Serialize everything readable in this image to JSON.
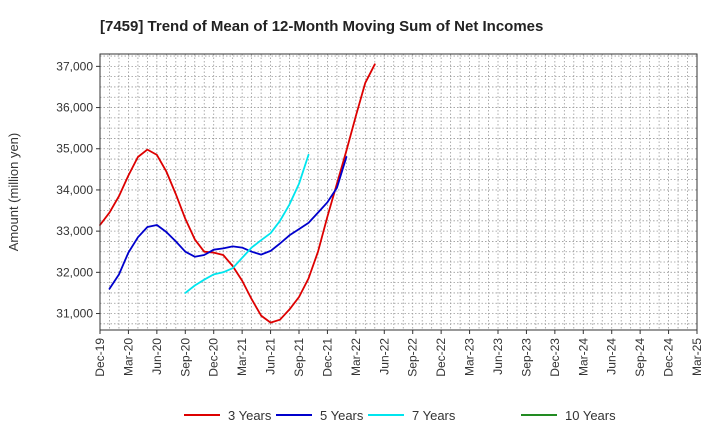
{
  "chart_data": {
    "type": "line",
    "title": "[7459]  Trend of Mean of 12-Month Moving Sum of Net Incomes",
    "xlabel": "",
    "ylabel": "Amount (million yen)",
    "ylim": [
      30600,
      37300
    ],
    "yticks": [
      31000,
      32000,
      33000,
      34000,
      35000,
      36000,
      37000
    ],
    "ytick_labels": [
      "31,000",
      "32,000",
      "33,000",
      "34,000",
      "35,000",
      "36,000",
      "37,000"
    ],
    "xticks": [
      "Dec-19",
      "Mar-20",
      "Jun-20",
      "Sep-20",
      "Dec-20",
      "Mar-21",
      "Jun-21",
      "Sep-21",
      "Dec-21",
      "Mar-22",
      "Jun-22",
      "Sep-22",
      "Dec-22",
      "Mar-23",
      "Jun-23",
      "Sep-23",
      "Dec-23",
      "Mar-24",
      "Jun-24",
      "Sep-24",
      "Dec-24",
      "Mar-25"
    ],
    "grid": true,
    "legend_position": "bottom",
    "series": [
      {
        "name": "3 Years",
        "color": "#dd0000",
        "start_index": 0,
        "values": [
          33150,
          33450,
          33850,
          34350,
          34800,
          34980,
          34850,
          34450,
          33900,
          33300,
          32800,
          32500,
          32480,
          32420,
          32150,
          31800,
          31350,
          30950,
          30780,
          30850,
          31100,
          31400,
          31850,
          32500,
          33350,
          34150,
          34950,
          35800,
          36600,
          37050
        ]
      },
      {
        "name": "5 Years",
        "color": "#0000cc",
        "start_index": 1,
        "values": [
          31600,
          31950,
          32480,
          32850,
          33100,
          33150,
          32980,
          32750,
          32500,
          32380,
          32420,
          32550,
          32580,
          32630,
          32600,
          32500,
          32430,
          32520,
          32700,
          32900,
          33050,
          33200,
          33450,
          33700,
          34050,
          34800
        ]
      },
      {
        "name": "7 Years",
        "color": "#00e5ee",
        "start_index": 9,
        "values": [
          31500,
          31680,
          31820,
          31950,
          32000,
          32100,
          32350,
          32600,
          32780,
          32950,
          33250,
          33650,
          34150,
          34850
        ]
      },
      {
        "name": "10 Years",
        "color": "#228b22",
        "start_index": 0,
        "values": []
      }
    ]
  }
}
